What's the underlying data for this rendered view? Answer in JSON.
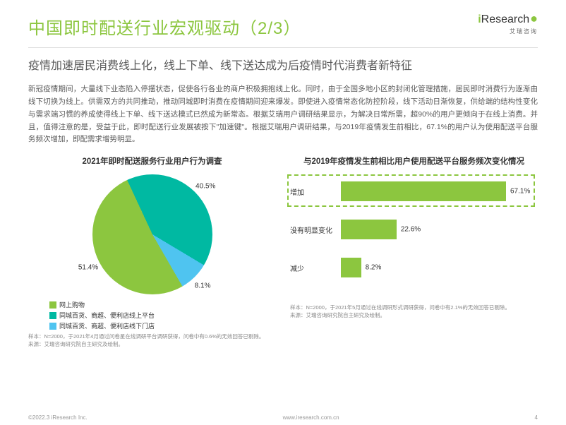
{
  "header": {
    "title": "中国即时配送行业宏观驱动（2/3）",
    "logo_i": "i",
    "logo_r": "Research",
    "logo_sub": "艾瑞咨询"
  },
  "subtitle": "疫情加速居民消费线上化，线上下单、线下送达成为后疫情时代消费者新特征",
  "body": "新冠疫情期间，大量线下业态陷入停摆状态，促使各行各业的商户积极拥抱线上化。同时，由于全国多地小区的封闭化管理措施，居民即时消费行为逐渐由线下切换为线上。供需双方的共同推动，推动同城即时消费在疫情期间迎来爆发。即使进入疫情常态化防控阶段，线下活动日渐恢复，供给端的结构性变化与需求端习惯的养成使得线上下单、线下送达模式已然成为新常态。根据艾瑞用户调研结果显示，为解决日常所需，超90%的用户更倾向于在线上消费。并且，值得注意的是，受益于此，即时配送行业发展被按下\"加速键\"。根据艾瑞用户调研结果，与2019年疫情发生前相比，67.1%的用户认为使用配送平台服务频次增加，即配需求增势明显。",
  "pie": {
    "title": "2021年即时配送服务行业用户行为调查",
    "slices": [
      {
        "label": "网上购物",
        "value": 51.4,
        "color": "#8cc63f"
      },
      {
        "label": "同城百货、商超、便利店线上平台",
        "value": 40.5,
        "color": "#00b9a2"
      },
      {
        "label": "同城百货、商超、便利店线下门店",
        "value": 8.1,
        "color": "#4fc4f0"
      }
    ],
    "footnote": "样本：N=2000，于2021年4月通过问卷星在线调研平台调研获得，问卷中有0.6%的无效回答已剔除。\n来源：艾瑞咨询研究院自主研究及绘制。"
  },
  "bars": {
    "title": "与2019年疫情发生前相比用户使用配送平台服务频次变化情况",
    "bar_color": "#8cc63f",
    "dash_color": "#8cc63f",
    "max": 80,
    "items": [
      {
        "label": "增加",
        "value": 67.1,
        "highlight": true
      },
      {
        "label": "没有明显变化",
        "value": 22.6,
        "highlight": false
      },
      {
        "label": "减少",
        "value": 8.2,
        "highlight": false
      }
    ],
    "footnote": "样本：N=2000，于2021年5月通过在线调研形式调研获得，问卷中有2.1%的无效回答已剔除。\n来源：艾瑞咨询研究院自主研究及绘制。"
  },
  "footer": {
    "left": "©2022.3 iResearch Inc.",
    "right": "www.iresearch.com.cn",
    "page": "4"
  }
}
